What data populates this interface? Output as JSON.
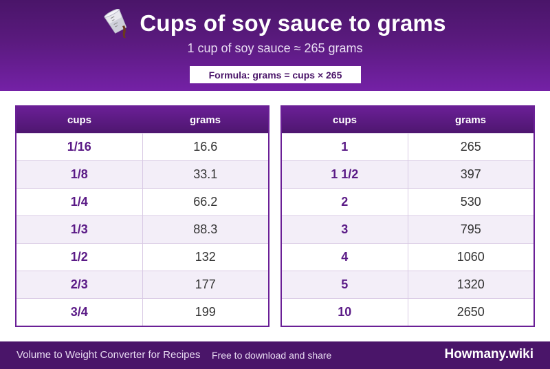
{
  "header": {
    "title": "Cups of soy sauce to grams",
    "subtitle": "1 cup of soy sauce ≈ 265 grams",
    "formula": "Formula: grams = cups × 265",
    "icon": "measuring-cup-pouring-icon"
  },
  "tables": [
    {
      "col1": "cups",
      "col2": "grams",
      "rows": [
        [
          "1/16",
          "16.6"
        ],
        [
          "1/8",
          "33.1"
        ],
        [
          "1/4",
          "66.2"
        ],
        [
          "1/3",
          "88.3"
        ],
        [
          "1/2",
          "132"
        ],
        [
          "2/3",
          "177"
        ],
        [
          "3/4",
          "199"
        ]
      ]
    },
    {
      "col1": "cups",
      "col2": "grams",
      "rows": [
        [
          "1",
          "265"
        ],
        [
          "1 1/2",
          "397"
        ],
        [
          "2",
          "530"
        ],
        [
          "3",
          "795"
        ],
        [
          "4",
          "1060"
        ],
        [
          "5",
          "1320"
        ],
        [
          "10",
          "2650"
        ]
      ]
    }
  ],
  "footer": {
    "left": "Volume to Weight Converter for Recipes",
    "mid": "Free to download and share",
    "brand": "Howmany.wiki"
  },
  "colors": {
    "header_dark": "#4a1569",
    "header_light": "#7421a6",
    "accent_text": "#5a1a86",
    "row_alt": "#f3eef8"
  }
}
